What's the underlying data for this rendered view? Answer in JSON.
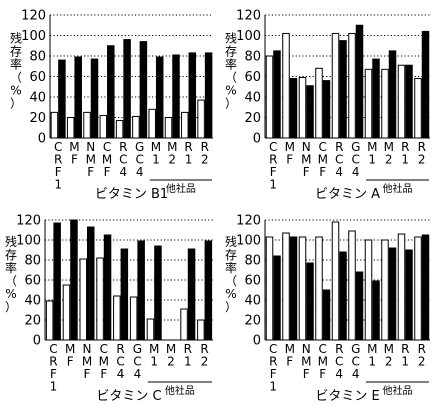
{
  "figure": {
    "ylabel": "残存率（%）",
    "group_label": "他社品"
  },
  "chart_data": [
    {
      "type": "bar",
      "title": "ビタミン B1",
      "ylabel": "残存率（%）",
      "ylim": [
        0,
        120
      ],
      "yticks": [
        0,
        20,
        40,
        60,
        80,
        100,
        120
      ],
      "grid": true,
      "categories": [
        "CRF1",
        "MF",
        "NMF",
        "CMF",
        "RC4",
        "GC4",
        "M1",
        "M2",
        "R1",
        "R2"
      ],
      "category_labels": [
        [
          "C",
          "R",
          "F",
          "1"
        ],
        [
          "M",
          "F"
        ],
        [
          "N",
          "M",
          "F"
        ],
        [
          "C",
          "M",
          "F"
        ],
        [
          "R",
          "C",
          "4"
        ],
        [
          "G",
          "C",
          "4"
        ],
        [
          "M",
          "1"
        ],
        [
          "M",
          "2"
        ],
        [
          "R",
          "1"
        ],
        [
          "R",
          "2"
        ]
      ],
      "group_label": "他社品",
      "series": [
        {
          "fill": "white",
          "values": [
            25,
            20,
            25,
            22,
            17,
            21,
            28,
            20,
            25,
            37
          ]
        },
        {
          "fill": "black",
          "values": [
            76,
            79,
            77,
            90,
            96,
            94,
            79,
            81,
            83,
            83
          ]
        }
      ]
    },
    {
      "type": "bar",
      "title": "ビタミン A",
      "ylabel": "残存率（%）",
      "ylim": [
        0,
        120
      ],
      "yticks": [
        0,
        20,
        40,
        60,
        80,
        100,
        120
      ],
      "grid": true,
      "categories": [
        "CRF1",
        "MF",
        "NMF",
        "CMF",
        "RC4",
        "GC4",
        "M1",
        "M2",
        "R1",
        "R2"
      ],
      "category_labels": [
        [
          "C",
          "R",
          "F",
          "1"
        ],
        [
          "M",
          "F"
        ],
        [
          "N",
          "M",
          "F"
        ],
        [
          "C",
          "M",
          "F"
        ],
        [
          "R",
          "C",
          "4"
        ],
        [
          "G",
          "C",
          "4"
        ],
        [
          "M",
          "1"
        ],
        [
          "M",
          "2"
        ],
        [
          "R",
          "1"
        ],
        [
          "R",
          "2"
        ]
      ],
      "group_label": "他社品",
      "series": [
        {
          "fill": "white",
          "values": [
            80,
            102,
            59,
            68,
            102,
            102,
            67,
            67,
            71,
            58
          ]
        },
        {
          "fill": "black",
          "values": [
            85,
            58,
            51,
            56,
            95,
            110,
            77,
            85,
            71,
            104
          ]
        }
      ]
    },
    {
      "type": "bar",
      "title": "ビタミン C",
      "ylabel": "残存率（%）",
      "ylim": [
        0,
        120
      ],
      "yticks": [
        0,
        20,
        40,
        60,
        80,
        100,
        120
      ],
      "grid": true,
      "categories": [
        "CRF1",
        "MF",
        "NMF",
        "CMF",
        "RC4",
        "GC4",
        "M1",
        "M2",
        "R1",
        "R2"
      ],
      "category_labels": [
        [
          "C",
          "R",
          "F",
          "1"
        ],
        [
          "M",
          "F"
        ],
        [
          "N",
          "M",
          "F"
        ],
        [
          "C",
          "M",
          "F"
        ],
        [
          "R",
          "C",
          "4"
        ],
        [
          "G",
          "C",
          "4"
        ],
        [
          "M",
          "1"
        ],
        [
          "M",
          "2"
        ],
        [
          "R",
          "1"
        ],
        [
          "R",
          "2"
        ]
      ],
      "group_label": "他社品",
      "series": [
        {
          "fill": "white",
          "values": [
            39,
            55,
            81,
            82,
            44,
            43,
            21,
            0,
            31,
            20
          ]
        },
        {
          "fill": "black",
          "values": [
            117,
            120,
            113,
            105,
            91,
            99,
            94,
            0,
            91,
            99
          ]
        }
      ]
    },
    {
      "type": "bar",
      "title": "ビタミン E",
      "ylabel": "残存率（%）",
      "ylim": [
        0,
        120
      ],
      "yticks": [
        0,
        20,
        40,
        60,
        80,
        100,
        120
      ],
      "grid": true,
      "categories": [
        "CRF1",
        "MF",
        "NMF",
        "CMF",
        "RC4",
        "GC4",
        "M1",
        "M2",
        "R1",
        "R2"
      ],
      "category_labels": [
        [
          "C",
          "R",
          "F",
          "1"
        ],
        [
          "M",
          "F"
        ],
        [
          "N",
          "M",
          "F"
        ],
        [
          "C",
          "M",
          "F"
        ],
        [
          "R",
          "C",
          "4"
        ],
        [
          "G",
          "C",
          "4"
        ],
        [
          "M",
          "1"
        ],
        [
          "M",
          "2"
        ],
        [
          "R",
          "1"
        ],
        [
          "R",
          "2"
        ]
      ],
      "group_label": "他社品",
      "series": [
        {
          "fill": "white",
          "values": [
            103,
            107,
            103,
            103,
            118,
            109,
            100,
            100,
            106,
            103
          ]
        },
        {
          "fill": "black",
          "values": [
            84,
            103,
            77,
            50,
            88,
            68,
            59,
            92,
            90,
            105
          ]
        }
      ]
    }
  ]
}
